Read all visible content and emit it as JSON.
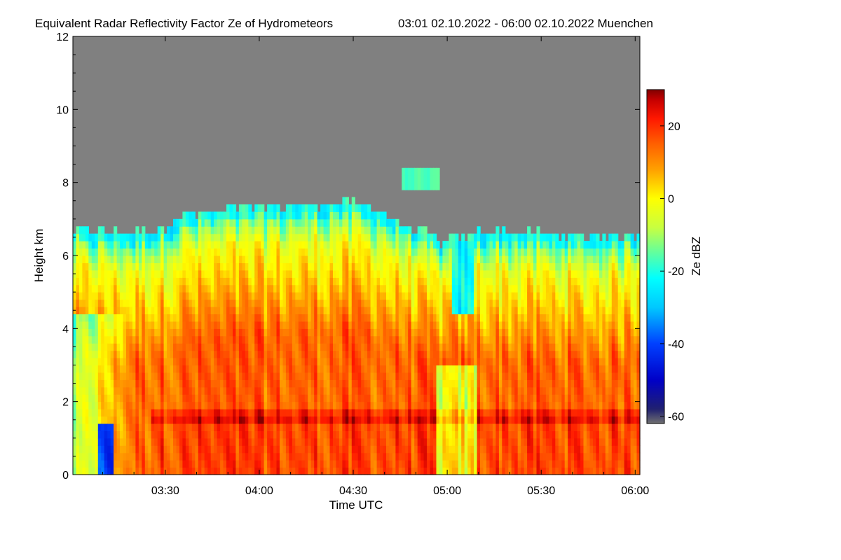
{
  "chart_data": {
    "type": "heatmap",
    "title": "Equivalent Radar Reflectivity Factor Ze of Hydrometeors",
    "subtitle": "03:01 02.10.2022 - 06:00 02.10.2022 Muenchen",
    "xlabel": "Time UTC",
    "ylabel": "Height km",
    "colorbar_label": "Ze dBZ",
    "xlim_minutes": [
      181,
      360
    ],
    "ylim": [
      0,
      12
    ],
    "x_ticks": [
      {
        "value": 210,
        "label": "03:30"
      },
      {
        "value": 240,
        "label": "04:00"
      },
      {
        "value": 270,
        "label": "04:30"
      },
      {
        "value": 300,
        "label": "05:00"
      },
      {
        "value": 330,
        "label": "05:30"
      },
      {
        "value": 360,
        "label": "06:00"
      }
    ],
    "y_ticks": [
      {
        "value": 0,
        "label": "0"
      },
      {
        "value": 2,
        "label": "2"
      },
      {
        "value": 4,
        "label": "4"
      },
      {
        "value": 6,
        "label": "6"
      },
      {
        "value": 8,
        "label": "8"
      },
      {
        "value": 10,
        "label": "10"
      },
      {
        "value": 12,
        "label": "12"
      }
    ],
    "colorbar_range": [
      -62,
      30
    ],
    "colorbar_ticks": [
      {
        "value": 20,
        "label": "20"
      },
      {
        "value": 0,
        "label": "0"
      },
      {
        "value": -20,
        "label": "-20"
      },
      {
        "value": -40,
        "label": "-40"
      },
      {
        "value": -60,
        "label": "-60"
      }
    ],
    "colormap": [
      {
        "v": -62,
        "c": "#707070"
      },
      {
        "v": -58,
        "c": "#202070"
      },
      {
        "v": -50,
        "c": "#0000c8"
      },
      {
        "v": -40,
        "c": "#0040ff"
      },
      {
        "v": -30,
        "c": "#00c8ff"
      },
      {
        "v": -22,
        "c": "#00ffff"
      },
      {
        "v": -15,
        "c": "#60ffa0"
      },
      {
        "v": -8,
        "c": "#c8ff40"
      },
      {
        "v": 0,
        "c": "#ffff00"
      },
      {
        "v": 8,
        "c": "#ffa000"
      },
      {
        "v": 15,
        "c": "#ff6000"
      },
      {
        "v": 22,
        "c": "#ff1800"
      },
      {
        "v": 27,
        "c": "#c80000"
      },
      {
        "v": 30,
        "c": "#800000"
      }
    ],
    "no_signal_color": "#808080",
    "features": {
      "cloud_top_km_by_minute": [
        {
          "t": 181,
          "h": 6.7
        },
        {
          "t": 200,
          "h": 6.6
        },
        {
          "t": 210,
          "h": 6.8
        },
        {
          "t": 215,
          "h": 7.1
        },
        {
          "t": 225,
          "h": 7.2
        },
        {
          "t": 240,
          "h": 7.35
        },
        {
          "t": 255,
          "h": 7.35
        },
        {
          "t": 265,
          "h": 7.45
        },
        {
          "t": 275,
          "h": 7.35
        },
        {
          "t": 283,
          "h": 7.0
        },
        {
          "t": 290,
          "h": 6.7
        },
        {
          "t": 298,
          "h": 6.4
        },
        {
          "t": 304,
          "h": 6.5
        },
        {
          "t": 310,
          "h": 6.65
        },
        {
          "t": 330,
          "h": 6.6
        },
        {
          "t": 345,
          "h": 6.5
        },
        {
          "t": 360,
          "h": 6.6
        }
      ],
      "melting_layer_km": 1.6,
      "upper_cloud_km": [
        7.9,
        8.5
      ]
    }
  }
}
